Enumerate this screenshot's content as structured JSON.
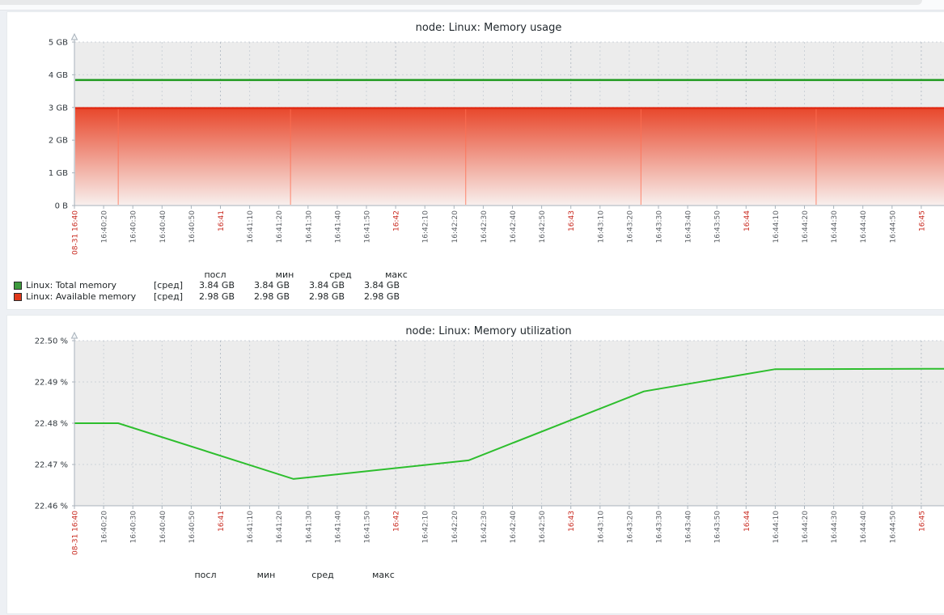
{
  "chrome": {
    "note": "browser edge strip"
  },
  "x_axis": {
    "ticks": [
      {
        "label": "08-31 16:40",
        "red": true
      },
      {
        "label": "16:40:20",
        "red": false
      },
      {
        "label": "16:40:30",
        "red": false
      },
      {
        "label": "16:40:40",
        "red": false
      },
      {
        "label": "16:40:50",
        "red": false
      },
      {
        "label": "16:41",
        "red": true
      },
      {
        "label": "16:41:10",
        "red": false
      },
      {
        "label": "16:41:20",
        "red": false
      },
      {
        "label": "16:41:30",
        "red": false
      },
      {
        "label": "16:41:40",
        "red": false
      },
      {
        "label": "16:41:50",
        "red": false
      },
      {
        "label": "16:42",
        "red": true
      },
      {
        "label": "16:42:10",
        "red": false
      },
      {
        "label": "16:42:20",
        "red": false
      },
      {
        "label": "16:42:30",
        "red": false
      },
      {
        "label": "16:42:40",
        "red": false
      },
      {
        "label": "16:42:50",
        "red": false
      },
      {
        "label": "16:43",
        "red": true
      },
      {
        "label": "16:43:10",
        "red": false
      },
      {
        "label": "16:43:20",
        "red": false
      },
      {
        "label": "16:43:30",
        "red": false
      },
      {
        "label": "16:43:40",
        "red": false
      },
      {
        "label": "16:43:50",
        "red": false
      },
      {
        "label": "16:44",
        "red": true
      },
      {
        "label": "16:44:10",
        "red": false
      },
      {
        "label": "16:44:20",
        "red": false
      },
      {
        "label": "16:44:30",
        "red": false
      },
      {
        "label": "16:44:40",
        "red": false
      },
      {
        "label": "16:44:50",
        "red": false
      },
      {
        "label": "16:45",
        "red": true
      }
    ]
  },
  "colors": {
    "tick_normal": "#5c6066",
    "tick_red": "#c8281e",
    "axis": "#a8b2bb",
    "plot_bg": "#ececec",
    "grid": "#ccd2d8",
    "grid_minute": "#b7bfc7"
  },
  "chart_data": [
    {
      "type": "area",
      "title": "node: Linux: Memory usage",
      "ylabel": "",
      "ylim": [
        0,
        5
      ],
      "y_ticks": [
        {
          "label": "5 GB",
          "value": 5
        },
        {
          "label": "4 GB",
          "value": 4
        },
        {
          "label": "3 GB",
          "value": 3
        },
        {
          "label": "2 GB",
          "value": 2
        },
        {
          "label": "1 GB",
          "value": 1
        },
        {
          "label": "0 B",
          "value": 0
        }
      ],
      "series": [
        {
          "name": "Linux: Total memory",
          "type": "line",
          "color": "#1f9a1f",
          "value_gb": 3.84
        },
        {
          "name": "Linux: Available memory",
          "type": "gradient_area",
          "color_top": "#e8472b",
          "color_edge": "#e22b14",
          "color_bottom": "#f8f0ee",
          "value_gb": 2.98,
          "seam_times_s": [
            15,
            74,
            134,
            194,
            254
          ]
        }
      ],
      "legend": {
        "headers": [
          "посл",
          "мин",
          "сред",
          "макс"
        ],
        "rows": [
          {
            "swatch": "#3d9a3d",
            "label": "Linux: Total memory",
            "func": "[сред]",
            "values": [
              "3.84 GB",
              "3.84 GB",
              "3.84 GB",
              "3.84 GB"
            ]
          },
          {
            "swatch": "#e0381b",
            "label": "Linux: Available memory",
            "func": "[сред]",
            "values": [
              "2.98 GB",
              "2.98 GB",
              "2.98 GB",
              "2.98 GB"
            ]
          }
        ]
      }
    },
    {
      "type": "line",
      "title": "node: Linux: Memory utilization",
      "ylabel": "",
      "ylim": [
        22.46,
        22.5
      ],
      "y_ticks": [
        {
          "label": "22.50 %",
          "value": 22.5
        },
        {
          "label": "22.49 %",
          "value": 22.49
        },
        {
          "label": "22.48 %",
          "value": 22.48
        },
        {
          "label": "22.47 %",
          "value": 22.47
        },
        {
          "label": "22.46 %",
          "value": 22.46
        }
      ],
      "series": [
        {
          "name": "Linux: Memory utilization",
          "type": "line",
          "color": "#2dbe2d",
          "points_t_s_value_pct": [
            [
              0,
              22.48
            ],
            [
              15,
              22.48
            ],
            [
              75,
              22.4665
            ],
            [
              135,
              22.471
            ],
            [
              195,
              22.4877
            ],
            [
              240,
              22.4931
            ],
            [
              300,
              22.4932
            ]
          ]
        }
      ],
      "legend": {
        "headers": [
          "посл",
          "мин",
          "сред",
          "макс"
        ],
        "rows": []
      }
    }
  ]
}
